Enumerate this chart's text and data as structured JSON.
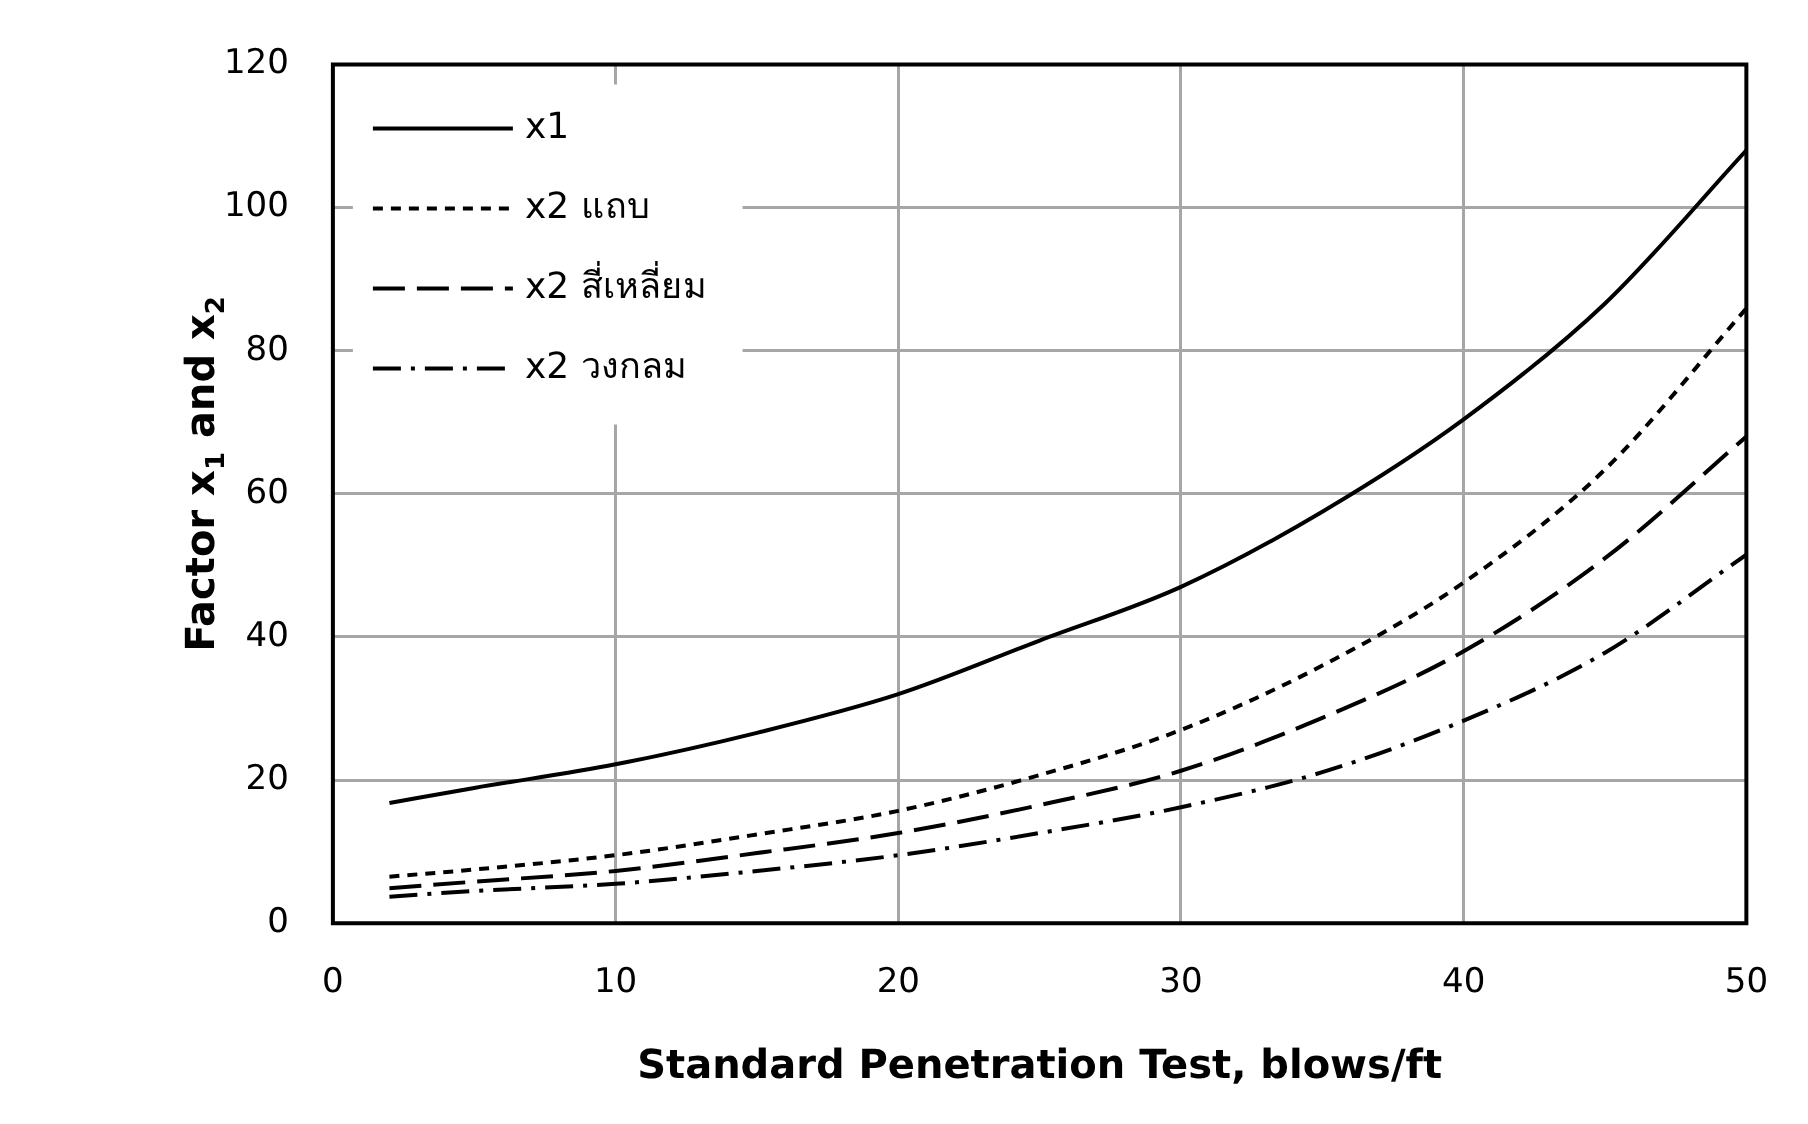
{
  "chart_data": {
    "type": "line",
    "xlabel": "Standard Penetration Test, blows/ft",
    "ylabel": "Factor x$_{1}$ and  x$_{2}$",
    "x": [
      2,
      5,
      10,
      15,
      20,
      25,
      30,
      35,
      40,
      45,
      50
    ],
    "series": [
      {
        "name": "x1",
        "color": "#000000",
        "line_style": "solid",
        "values": [
          16.8,
          18.9,
          22.2,
          26.6,
          32,
          39.5,
          47,
          57.5,
          70.4,
          86.6,
          108
        ]
      },
      {
        "name": "x2 แถบ",
        "color": "#000000",
        "line_style": "dotted",
        "values": [
          6.5,
          7.5,
          9.5,
          12.4,
          15.7,
          20.7,
          27,
          36,
          47.6,
          63.4,
          85.9
        ]
      },
      {
        "name": "x2 สี่เหลี่ยม",
        "color": "#000000",
        "line_style": "dashed",
        "values": [
          4.9,
          5.8,
          7.3,
          9.8,
          12.6,
          16.5,
          21.3,
          28.7,
          38,
          51,
          68
        ]
      },
      {
        "name": "x2 วงกลม",
        "color": "#000000",
        "line_style": "dashdot",
        "values": [
          3.7,
          4.5,
          5.5,
          7.3,
          9.5,
          12.6,
          16.2,
          21.1,
          28.3,
          37.8,
          51.5
        ]
      }
    ],
    "xlim": [
      0,
      50
    ],
    "xticks": [
      0,
      10,
      20,
      30,
      40,
      50
    ],
    "ylim": [
      0,
      120
    ],
    "yticks": [
      0,
      20,
      40,
      60,
      80,
      100,
      120
    ],
    "grid": true,
    "legend": "top left",
    "marker": "none"
  }
}
